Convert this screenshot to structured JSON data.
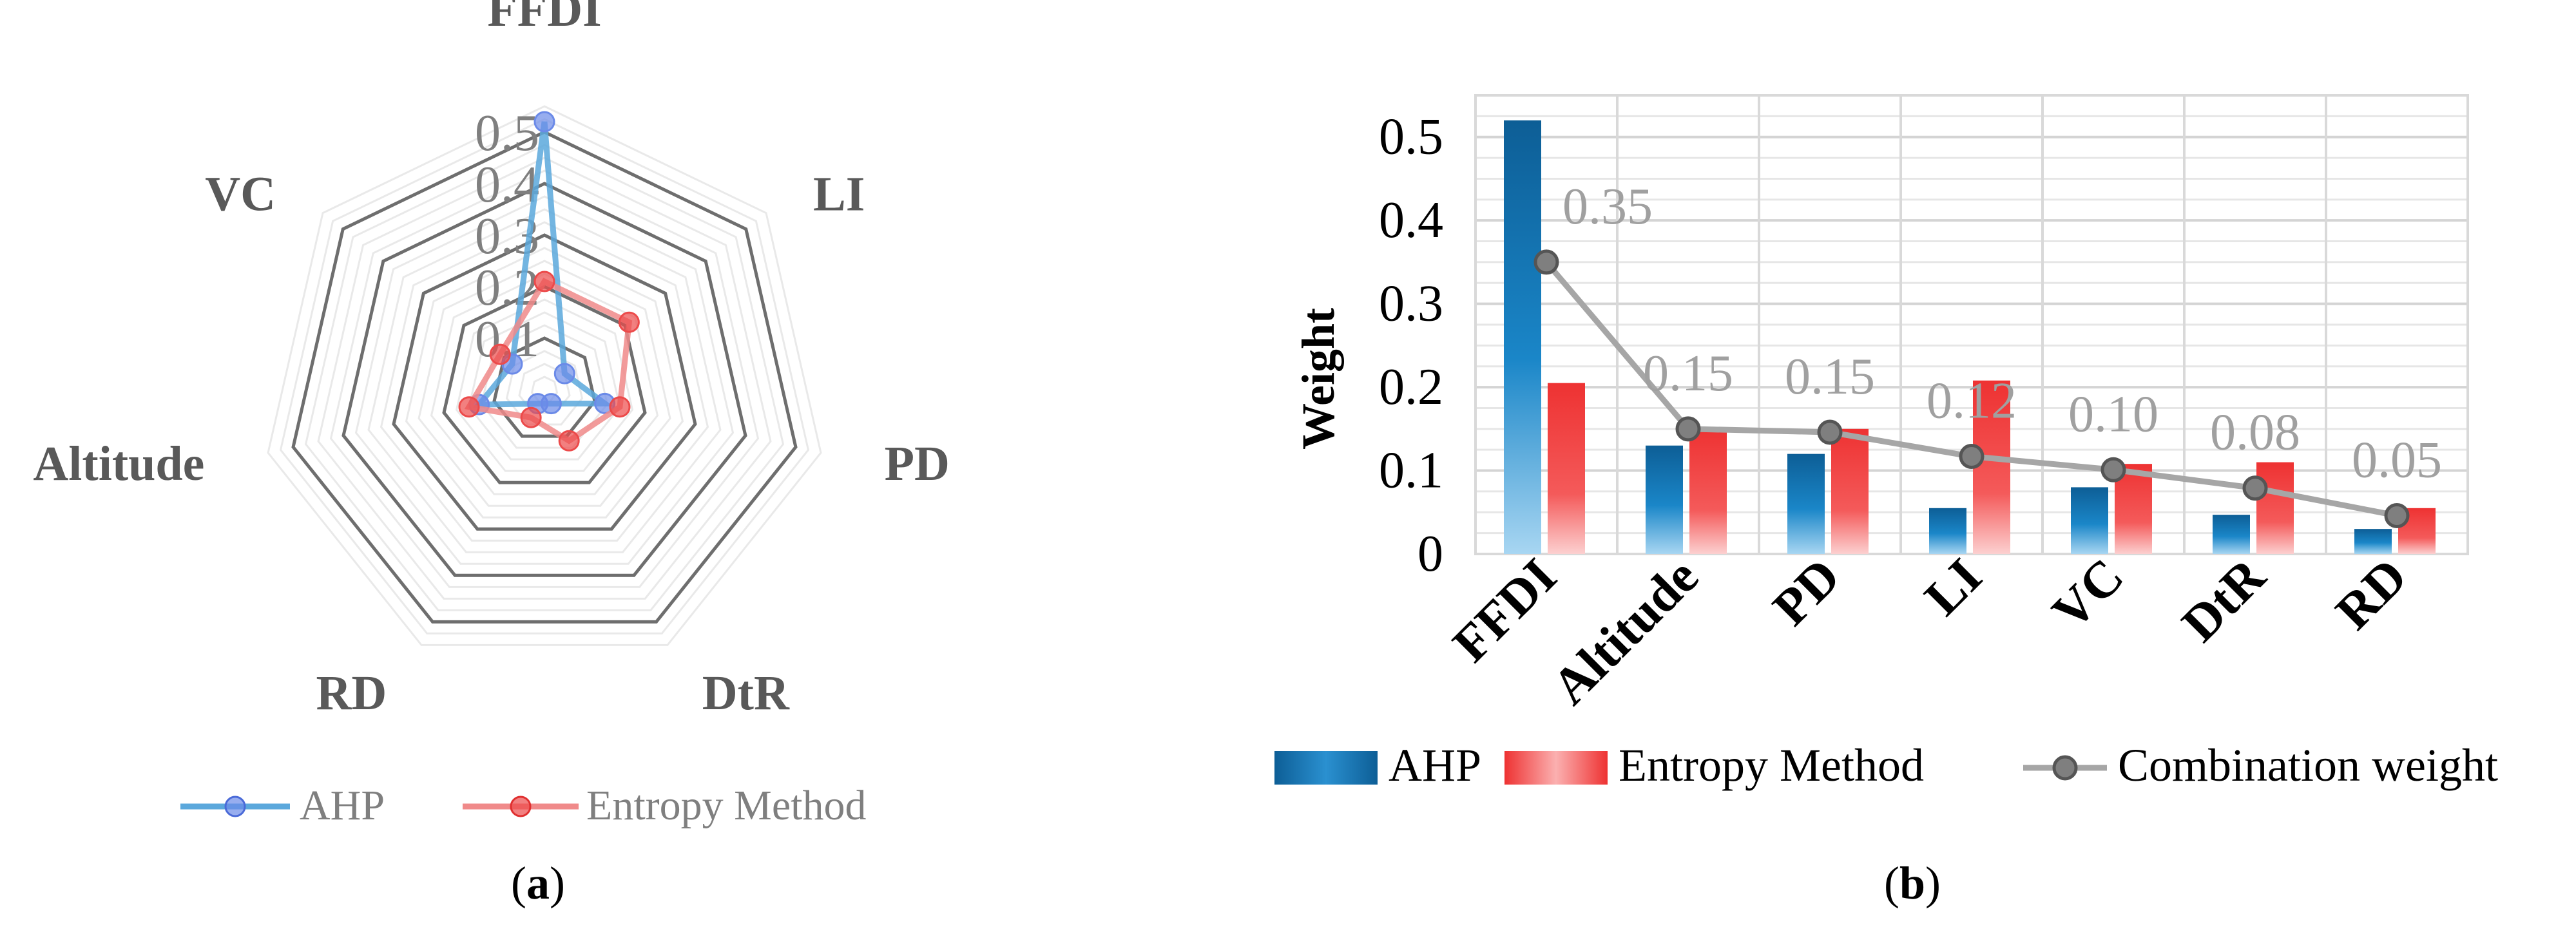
{
  "chart_data": [
    {
      "type": "radar",
      "panel_label": "(a)",
      "panel_letter": "a",
      "axes": [
        "FFDI",
        "LI",
        "PD",
        "DtR",
        "RD",
        "Altitude",
        "VC"
      ],
      "radial_ticks": [
        0.1,
        0.2,
        0.3,
        0.4,
        0.5
      ],
      "radial_tick_labels": [
        "0.1",
        "0.2",
        "0.3",
        "0.4",
        "0.5"
      ],
      "rlim": [
        0,
        0.55
      ],
      "series": [
        {
          "name": "AHP",
          "values": [
            0.52,
            0.05,
            0.12,
            0.03,
            0.03,
            0.13,
            0.08
          ],
          "color": "#5ba8dc",
          "marker": "#6b8ae8"
        },
        {
          "name": "Entropy Method",
          "values": [
            0.21,
            0.21,
            0.15,
            0.11,
            0.06,
            0.15,
            0.11
          ],
          "color": "#f08a8a",
          "marker": "#ec4a4a"
        }
      ],
      "legend": [
        "AHP",
        "Entropy Method"
      ]
    },
    {
      "type": "bar+line",
      "panel_label": "(b)",
      "panel_letter": "b",
      "categories": [
        "FFDI",
        "Altitude",
        "PD",
        "LI",
        "VC",
        "DtR",
        "RD"
      ],
      "series": [
        {
          "name": "AHP",
          "type": "bar",
          "values": [
            0.52,
            0.13,
            0.12,
            0.055,
            0.08,
            0.047,
            0.03
          ],
          "color": "#1a7cbd"
        },
        {
          "name": "Entropy Method",
          "type": "bar",
          "values": [
            0.205,
            0.15,
            0.15,
            0.208,
            0.108,
            0.11,
            0.055
          ],
          "color": "#f0403f"
        },
        {
          "name": "Combination weight",
          "type": "line",
          "values": [
            0.35,
            0.15,
            0.146,
            0.117,
            0.101,
            0.079,
            0.046
          ],
          "color": "#a6a6a6"
        }
      ],
      "data_labels": [
        "0.35",
        "0.15",
        "0.15",
        "0.12",
        "0.10",
        "0.08",
        "0.05"
      ],
      "ylabel": "Weight",
      "ylim": [
        0,
        0.55
      ],
      "y_ticks": [
        0,
        0.1,
        0.2,
        0.3,
        0.4,
        0.5
      ],
      "y_tick_labels": [
        "0",
        "0.1",
        "0.2",
        "0.3",
        "0.4",
        "0.5"
      ],
      "legend": [
        "AHP",
        "Entropy Method",
        "Combination weight"
      ]
    }
  ]
}
